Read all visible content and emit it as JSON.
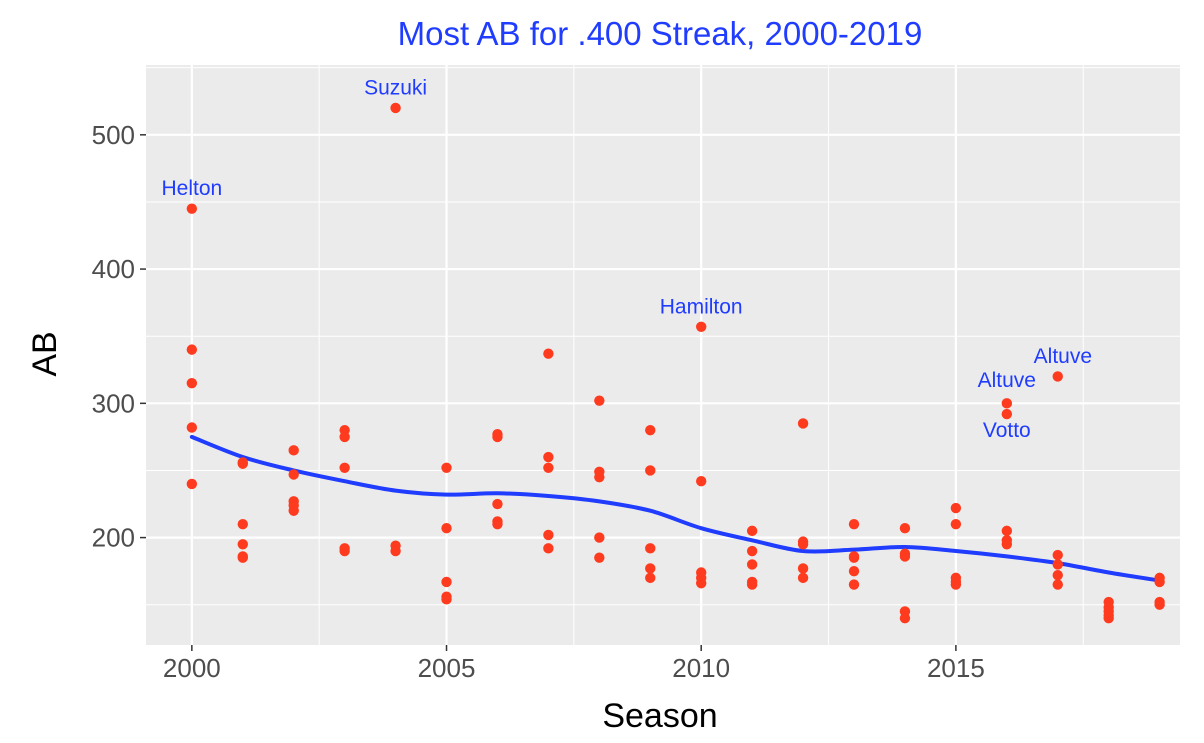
{
  "chart_data": {
    "type": "scatter",
    "title": "Most AB for .400 Streak, 2000-2019",
    "xlabel": "Season",
    "ylabel": "AB",
    "xlim": [
      1999.1,
      2019.4
    ],
    "ylim": [
      120,
      552
    ],
    "x_ticks": [
      2000,
      2005,
      2010,
      2015
    ],
    "y_ticks": [
      200,
      300,
      400,
      500
    ],
    "grid": true,
    "legend": "none",
    "colors": {
      "panel_background": "#ebebeb",
      "grid": "#ffffff",
      "points": "#ff3b1f",
      "smooth_line": "#1f3cff",
      "title": "#1f3cff",
      "annotations": "#1f3cff"
    },
    "points": [
      {
        "x": 2000,
        "y": 445
      },
      {
        "x": 2000,
        "y": 340
      },
      {
        "x": 2000,
        "y": 315
      },
      {
        "x": 2000,
        "y": 282
      },
      {
        "x": 2000,
        "y": 240
      },
      {
        "x": 2001,
        "y": 256
      },
      {
        "x": 2001,
        "y": 255
      },
      {
        "x": 2001,
        "y": 210
      },
      {
        "x": 2001,
        "y": 195
      },
      {
        "x": 2001,
        "y": 186
      },
      {
        "x": 2001,
        "y": 185
      },
      {
        "x": 2002,
        "y": 265
      },
      {
        "x": 2002,
        "y": 247
      },
      {
        "x": 2002,
        "y": 227
      },
      {
        "x": 2002,
        "y": 224
      },
      {
        "x": 2002,
        "y": 220
      },
      {
        "x": 2003,
        "y": 280
      },
      {
        "x": 2003,
        "y": 275
      },
      {
        "x": 2003,
        "y": 252
      },
      {
        "x": 2003,
        "y": 192
      },
      {
        "x": 2003,
        "y": 190
      },
      {
        "x": 2004,
        "y": 520
      },
      {
        "x": 2004,
        "y": 194
      },
      {
        "x": 2004,
        "y": 190
      },
      {
        "x": 2005,
        "y": 252
      },
      {
        "x": 2005,
        "y": 207
      },
      {
        "x": 2005,
        "y": 167
      },
      {
        "x": 2005,
        "y": 156
      },
      {
        "x": 2005,
        "y": 154
      },
      {
        "x": 2006,
        "y": 277
      },
      {
        "x": 2006,
        "y": 275
      },
      {
        "x": 2006,
        "y": 225
      },
      {
        "x": 2006,
        "y": 212
      },
      {
        "x": 2006,
        "y": 210
      },
      {
        "x": 2007,
        "y": 337
      },
      {
        "x": 2007,
        "y": 260
      },
      {
        "x": 2007,
        "y": 252
      },
      {
        "x": 2007,
        "y": 202
      },
      {
        "x": 2007,
        "y": 192
      },
      {
        "x": 2008,
        "y": 302
      },
      {
        "x": 2008,
        "y": 249
      },
      {
        "x": 2008,
        "y": 245
      },
      {
        "x": 2008,
        "y": 200
      },
      {
        "x": 2008,
        "y": 185
      },
      {
        "x": 2009,
        "y": 280
      },
      {
        "x": 2009,
        "y": 250
      },
      {
        "x": 2009,
        "y": 192
      },
      {
        "x": 2009,
        "y": 177
      },
      {
        "x": 2009,
        "y": 170
      },
      {
        "x": 2010,
        "y": 357
      },
      {
        "x": 2010,
        "y": 242
      },
      {
        "x": 2010,
        "y": 174
      },
      {
        "x": 2010,
        "y": 170
      },
      {
        "x": 2010,
        "y": 166
      },
      {
        "x": 2011,
        "y": 205
      },
      {
        "x": 2011,
        "y": 190
      },
      {
        "x": 2011,
        "y": 180
      },
      {
        "x": 2011,
        "y": 167
      },
      {
        "x": 2011,
        "y": 165
      },
      {
        "x": 2012,
        "y": 285
      },
      {
        "x": 2012,
        "y": 197
      },
      {
        "x": 2012,
        "y": 195
      },
      {
        "x": 2012,
        "y": 177
      },
      {
        "x": 2012,
        "y": 170
      },
      {
        "x": 2013,
        "y": 210
      },
      {
        "x": 2013,
        "y": 186
      },
      {
        "x": 2013,
        "y": 185
      },
      {
        "x": 2013,
        "y": 175
      },
      {
        "x": 2013,
        "y": 165
      },
      {
        "x": 2014,
        "y": 207
      },
      {
        "x": 2014,
        "y": 188
      },
      {
        "x": 2014,
        "y": 186
      },
      {
        "x": 2014,
        "y": 145
      },
      {
        "x": 2014,
        "y": 140
      },
      {
        "x": 2015,
        "y": 222
      },
      {
        "x": 2015,
        "y": 210
      },
      {
        "x": 2015,
        "y": 170
      },
      {
        "x": 2015,
        "y": 167
      },
      {
        "x": 2015,
        "y": 165
      },
      {
        "x": 2016,
        "y": 300
      },
      {
        "x": 2016,
        "y": 292
      },
      {
        "x": 2016,
        "y": 205
      },
      {
        "x": 2016,
        "y": 198
      },
      {
        "x": 2016,
        "y": 195
      },
      {
        "x": 2017,
        "y": 320
      },
      {
        "x": 2017,
        "y": 187
      },
      {
        "x": 2017,
        "y": 180
      },
      {
        "x": 2017,
        "y": 172
      },
      {
        "x": 2017,
        "y": 165
      },
      {
        "x": 2018,
        "y": 152
      },
      {
        "x": 2018,
        "y": 148
      },
      {
        "x": 2018,
        "y": 145
      },
      {
        "x": 2018,
        "y": 142
      },
      {
        "x": 2018,
        "y": 140
      },
      {
        "x": 2019,
        "y": 170
      },
      {
        "x": 2019,
        "y": 167
      },
      {
        "x": 2019,
        "y": 152
      },
      {
        "x": 2019,
        "y": 150
      }
    ],
    "smooth_line": [
      {
        "x": 2000,
        "y": 275
      },
      {
        "x": 2001,
        "y": 260
      },
      {
        "x": 2002,
        "y": 250
      },
      {
        "x": 2003,
        "y": 242
      },
      {
        "x": 2004,
        "y": 235
      },
      {
        "x": 2005,
        "y": 232
      },
      {
        "x": 2006,
        "y": 233
      },
      {
        "x": 2007,
        "y": 231
      },
      {
        "x": 2008,
        "y": 227
      },
      {
        "x": 2009,
        "y": 220
      },
      {
        "x": 2010,
        "y": 207
      },
      {
        "x": 2011,
        "y": 198
      },
      {
        "x": 2012,
        "y": 190
      },
      {
        "x": 2013,
        "y": 191
      },
      {
        "x": 2014,
        "y": 193
      },
      {
        "x": 2015,
        "y": 190
      },
      {
        "x": 2016,
        "y": 186
      },
      {
        "x": 2017,
        "y": 181
      },
      {
        "x": 2018,
        "y": 174
      },
      {
        "x": 2019,
        "y": 168
      }
    ],
    "annotations": [
      {
        "text": "Helton",
        "x": 2000,
        "y": 455
      },
      {
        "text": "Suzuki",
        "x": 2004,
        "y": 530
      },
      {
        "text": "Hamilton",
        "x": 2010,
        "y": 367
      },
      {
        "text": "Altuve",
        "x": 2017.1,
        "y": 330
      },
      {
        "text": "Altuve",
        "x": 2016.0,
        "y": 312
      },
      {
        "text": "Votto",
        "x": 2016.0,
        "y": 275
      }
    ]
  }
}
